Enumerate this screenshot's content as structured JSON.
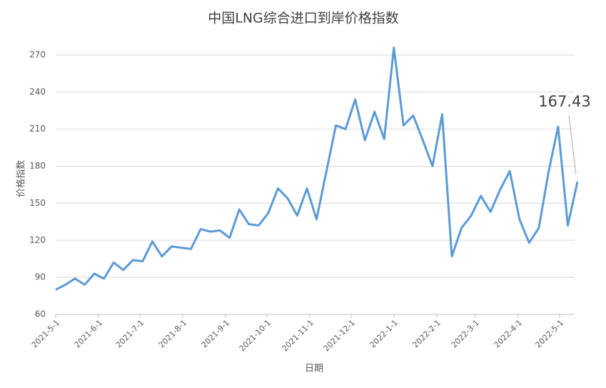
{
  "chart_data": {
    "type": "line",
    "title": "中国LNG综合进口到岸价格指数",
    "x_label": "日期",
    "y_label": "价格指数",
    "x": [
      "2021-5-1",
      "2021-5-8",
      "2021-5-15",
      "2021-5-22",
      "2021-5-29",
      "2021-6-5",
      "2021-6-12",
      "2021-6-19",
      "2021-6-26",
      "2021-7-3",
      "2021-7-10",
      "2021-7-17",
      "2021-7-24",
      "2021-7-31",
      "2021-8-7",
      "2021-8-14",
      "2021-8-21",
      "2021-8-28",
      "2021-9-4",
      "2021-9-11",
      "2021-9-18",
      "2021-9-25",
      "2021-10-2",
      "2021-10-9",
      "2021-10-16",
      "2021-10-23",
      "2021-10-30",
      "2021-11-6",
      "2021-11-13",
      "2021-11-20",
      "2021-11-27",
      "2021-12-4",
      "2021-12-11",
      "2021-12-18",
      "2021-12-25",
      "2022-1-1",
      "2022-1-8",
      "2022-1-15",
      "2022-1-22",
      "2022-1-29",
      "2022-2-5",
      "2022-2-12",
      "2022-2-19",
      "2022-2-26",
      "2022-3-5",
      "2022-3-12",
      "2022-3-19",
      "2022-3-26",
      "2022-4-2",
      "2022-4-9",
      "2022-4-16",
      "2022-4-23",
      "2022-4-30",
      "2022-5-7",
      "2022-5-14"
    ],
    "values": [
      80,
      84,
      89,
      84,
      93,
      89,
      102,
      96,
      104,
      103,
      119,
      107,
      115,
      114,
      113,
      129,
      127,
      128,
      122,
      145,
      133,
      132,
      142,
      162,
      154,
      140,
      162,
      137,
      175,
      213,
      210,
      234,
      201,
      224,
      202,
      276,
      213,
      221,
      201,
      180,
      222,
      107,
      130,
      140,
      156,
      143,
      161,
      176,
      137,
      118,
      130,
      175,
      212,
      132,
      167.43
    ],
    "color": "#5b9bd5",
    "xlim": [
      "2021-5-1",
      "2022-5-14"
    ],
    "xticks": [
      "2021-5-1",
      "2021-6-1",
      "2021-7-1",
      "2021-8-1",
      "2021-9-1",
      "2021-10-1",
      "2021-11-1",
      "2021-12-1",
      "2022-1-1",
      "2022-2-1",
      "2022-3-1",
      "2022-4-1",
      "2022-5-1"
    ],
    "ylim": [
      60,
      270
    ],
    "yticks": [
      60,
      90,
      120,
      150,
      180,
      210,
      240,
      270
    ],
    "grid": true
  }
}
